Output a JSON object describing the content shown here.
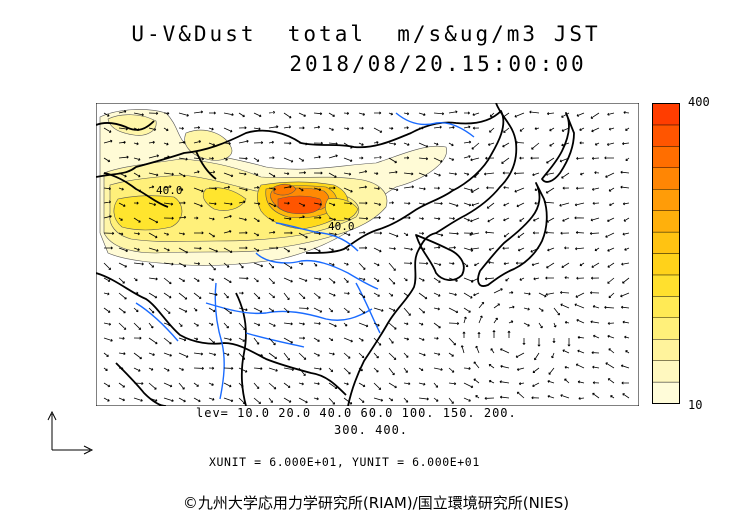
{
  "header": {
    "title": "U-V&Dust  total  m/s&ug/m3 JST",
    "datetime": "2018/08/20.15:00:00"
  },
  "colorbar": {
    "max_label": "400",
    "min_label": "10",
    "colors": [
      "#fffcd9",
      "#fff8bf",
      "#fff39c",
      "#fff07a",
      "#ffea55",
      "#ffe02e",
      "#ffd21a",
      "#ffc312",
      "#ffb00c",
      "#ff9c08",
      "#ff8604",
      "#ff6e00",
      "#ff5500",
      "#ff3d00"
    ]
  },
  "map_labels": {
    "contour_west": "40.0",
    "contour_center": "40.0"
  },
  "footer": {
    "levels_line1": "lev= 10.0 20.0 40.0 60.0 100. 150. 200.",
    "levels_line2": "300. 400.",
    "units": "XUNIT = 6.000E+01, YUNIT = 6.000E+01",
    "credit": "©九州大学応用力学研究所(RIAM)/国立環境研究所(NIES)"
  }
}
